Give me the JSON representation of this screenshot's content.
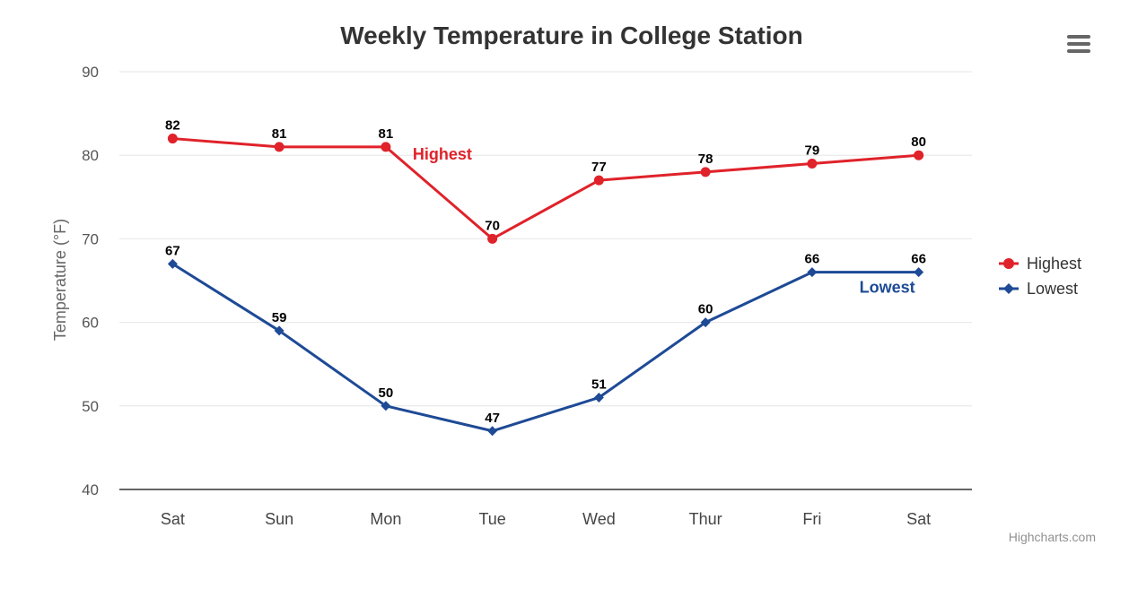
{
  "colors": {
    "highest": "#e0222a",
    "lowest": "#1e4a96",
    "grid": "#e6e6e6",
    "axis": "#333333",
    "menu": "#666666"
  },
  "menu": {
    "icon": "hamburger-menu-icon"
  },
  "credits": "Highcharts.com",
  "chart_data": {
    "type": "line",
    "title": "Weekly Temperature in College Station",
    "xlabel": "",
    "ylabel": "Temperature (°F)",
    "categories": [
      "Sat",
      "Sun",
      "Mon",
      "Tue",
      "Wed",
      "Thur",
      "Fri",
      "Sat"
    ],
    "ylim": [
      40,
      90
    ],
    "yticks": [
      40,
      50,
      60,
      70,
      80,
      90
    ],
    "grid": true,
    "legend_position": "right",
    "series": [
      {
        "name": "Highest",
        "marker": "circle",
        "color": "#e0222a",
        "values": [
          82,
          81,
          81,
          70,
          77,
          78,
          79,
          80
        ],
        "annotation": "Highest"
      },
      {
        "name": "Lowest",
        "marker": "diamond",
        "color": "#1e4a96",
        "values": [
          67,
          59,
          50,
          47,
          51,
          60,
          66,
          66
        ],
        "annotation": "Lowest"
      }
    ]
  }
}
